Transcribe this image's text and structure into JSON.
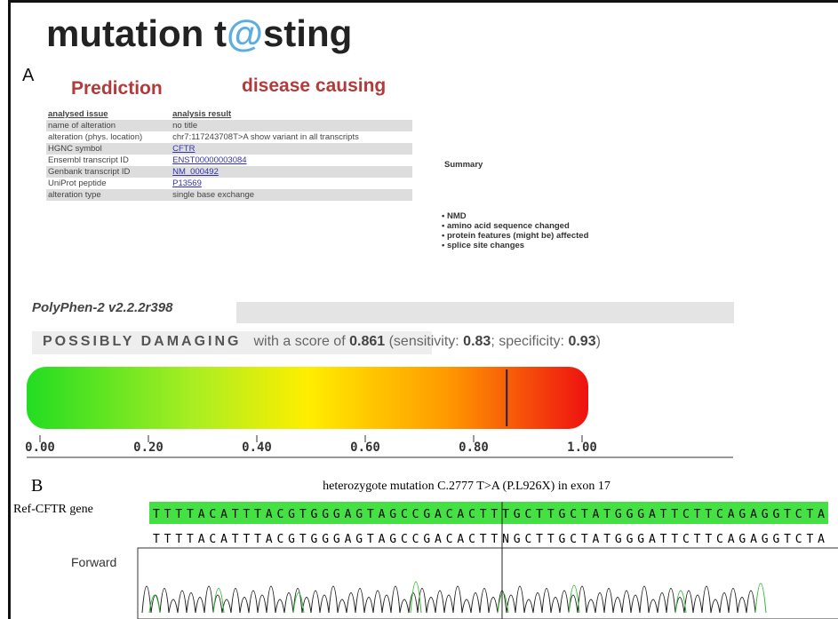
{
  "figure": {
    "panel_a_label": "A",
    "panel_b_label": "B",
    "mutationtaster": {
      "logo_left": "mutation t",
      "logo_at": "@",
      "logo_right": "sting",
      "prediction_label": "Prediction",
      "prediction": "disease causing",
      "table": {
        "header": [
          "analysed issue",
          "analysis result"
        ],
        "rows": [
          [
            "name of alteration",
            "no title"
          ],
          [
            "alteration (phys. location)",
            "chr7:117243708T>A show variant in all transcripts"
          ],
          [
            "HGNC symbol",
            "CFTR"
          ],
          [
            "Ensembl transcript ID",
            "ENST00000003084"
          ],
          [
            "Genbank transcript ID",
            "NM_000492"
          ],
          [
            "UniProt peptide",
            "P13569"
          ],
          [
            "alteration type",
            "single base exchange"
          ]
        ]
      },
      "summary_title": "Summary",
      "summary": [
        "NMD",
        "amino acid sequence changed",
        "protein features (might be) affected",
        "splice site changes"
      ]
    },
    "polyphen": {
      "version": "PolyPhen-2 v2.2.2r398",
      "verdict": "POSSIBLY DAMAGING",
      "score_text": "with a score of",
      "score": 0.861,
      "sensitivity_text": "(sensitivity:",
      "sensitivity": "0.83",
      "specificity_text": "; specificity:",
      "specificity": "0.93",
      "close_text": ")",
      "lim": [
        0,
        1
      ],
      "ticks": [
        {
          "value": 0,
          "label": "0.00"
        },
        {
          "value": 0.2,
          "label": "0.20"
        },
        {
          "value": 0.4,
          "label": "0.40"
        },
        {
          "value": 0.6,
          "label": "0.60"
        },
        {
          "value": 0.8,
          "label": "0.80"
        },
        {
          "value": 1,
          "label": "1.00"
        }
      ]
    },
    "sequencing": {
      "caption": "heterozygote mutation C.2777 T>A (P.L926X) in exon 17",
      "ref_label": "Ref-CFTR gene",
      "ref_sequence": "TTTTACATTTACGTGGGAGTAGCCGACACTTTGCTTGCTATGGGATTCTTCAGAGGTCTA",
      "read_sequence": "TTTTACATTTACGTGGGAGTAGCCGACACTTNGCTTGCTATGGGATTCTTCAGAGGTCTA",
      "read_label": "Forward"
    }
  }
}
